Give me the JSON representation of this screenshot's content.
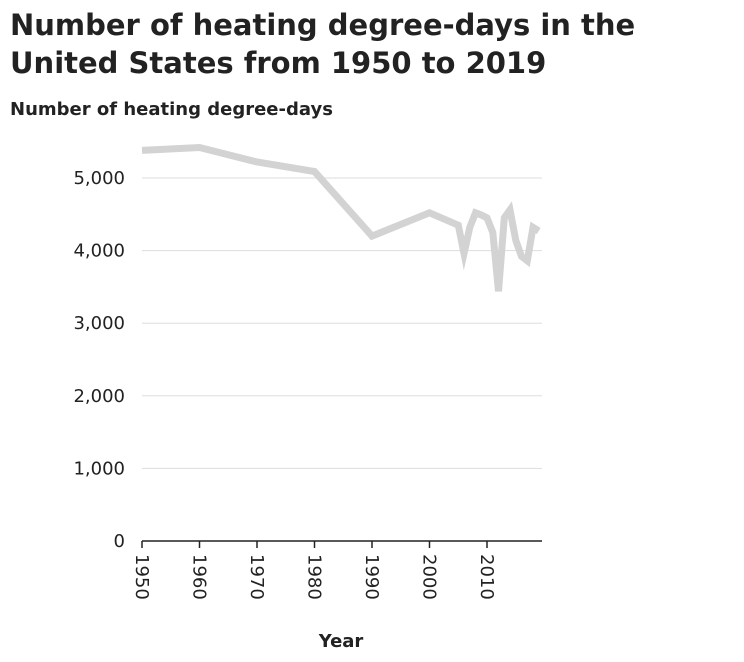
{
  "chart_data": {
    "type": "line",
    "title": "Number of heating degree-days in the United States from 1950 to 2019",
    "xlabel": "Year",
    "ylabel": "Number of heating degree-days",
    "xlim": [
      1950,
      2019
    ],
    "ylim": [
      0,
      5000
    ],
    "x_ticks": [
      1950,
      1960,
      1970,
      1980,
      1990,
      2000,
      2010
    ],
    "x_tick_labels": [
      "1950",
      "1960",
      "1970",
      "1980",
      "1990",
      "2000",
      "2010"
    ],
    "y_ticks": [
      0,
      1000,
      2000,
      3000,
      4000,
      5000
    ],
    "y_tick_labels": [
      "0",
      "1,000",
      "2,000",
      "3,000",
      "4,000",
      "5,000"
    ],
    "grid": "horizontal",
    "series": [
      {
        "name": "Heating degree-days",
        "color": "#d3d3d3",
        "x": [
          1950,
          1960,
          1970,
          1980,
          1990,
          2000,
          2005,
          2006,
          2007,
          2008,
          2009,
          2010,
          2011,
          2012,
          2013,
          2014,
          2015,
          2016,
          2017,
          2018,
          2019
        ],
        "y": [
          5380,
          5420,
          5220,
          5090,
          4200,
          4520,
          4350,
          3960,
          4320,
          4520,
          4490,
          4450,
          4250,
          3440,
          4450,
          4560,
          4140,
          3920,
          3860,
          4320,
          4270
        ]
      }
    ]
  }
}
